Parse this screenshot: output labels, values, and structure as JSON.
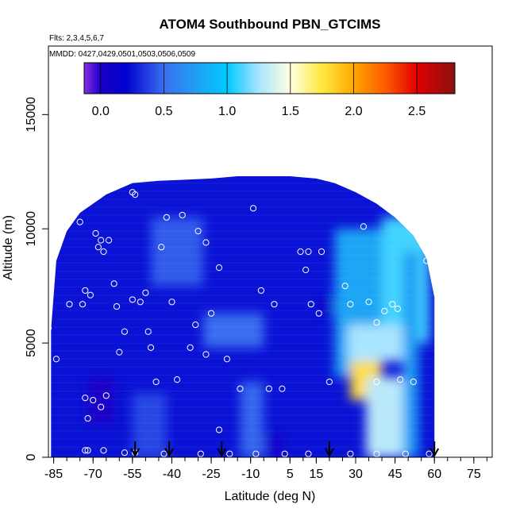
{
  "chart_data": {
    "type": "heatmap",
    "title": "ATOM4 Southbound PBN_GTCIMS",
    "flights_note": "Flts: 2,3,4,5,6,7",
    "dates_note": "MMDD: 0427,0429,0501,0503,0506,0509",
    "xlabel": "Latitude (deg N)",
    "ylabel": "Altitude (m)",
    "xlim": [
      -87,
      82
    ],
    "ylim": [
      0,
      18000
    ],
    "x_ticks": [
      -85,
      -70,
      -55,
      -40,
      -25,
      -10,
      5,
      15,
      30,
      45,
      60,
      75
    ],
    "x_minor_step": 5,
    "y_ticks": [
      0,
      5000,
      10000,
      15000
    ],
    "colorbar": {
      "range": [
        -0.13,
        2.8
      ],
      "ticks": [
        0.0,
        0.5,
        1.0,
        1.5,
        2.0,
        2.5
      ],
      "tick_labels": [
        "0.0",
        "0.5",
        "1.0",
        "1.5",
        "2.0",
        "2.5"
      ],
      "colors": [
        [
          -0.13,
          "#8a2be2"
        ],
        [
          0.0,
          "#1a00c8"
        ],
        [
          0.2,
          "#0000d0"
        ],
        [
          0.5,
          "#3a6ef0"
        ],
        [
          0.8,
          "#1aa8f5"
        ],
        [
          1.0,
          "#00c8ff"
        ],
        [
          1.25,
          "#a8e4ff"
        ],
        [
          1.5,
          "#ffffe0"
        ],
        [
          1.75,
          "#ffe840"
        ],
        [
          2.0,
          "#ffa800"
        ],
        [
          2.25,
          "#ff5a00"
        ],
        [
          2.5,
          "#e00000"
        ],
        [
          2.8,
          "#8a1010"
        ]
      ]
    },
    "envelope": [
      [
        -86,
        5600
      ],
      [
        -84,
        8600
      ],
      [
        -80,
        9900
      ],
      [
        -75,
        10700
      ],
      [
        -65,
        11500
      ],
      [
        -55,
        12000
      ],
      [
        -45,
        12100
      ],
      [
        -35,
        12150
      ],
      [
        -25,
        12200
      ],
      [
        -15,
        12300
      ],
      [
        -5,
        12300
      ],
      [
        5,
        12300
      ],
      [
        15,
        12200
      ],
      [
        22,
        12000
      ],
      [
        30,
        11600
      ],
      [
        38,
        11100
      ],
      [
        45,
        10500
      ],
      [
        52,
        9700
      ],
      [
        57,
        8700
      ],
      [
        60,
        7000
      ]
    ],
    "field_features": [
      {
        "lat": [
          -48,
          -28
        ],
        "alt": [
          7500,
          10500
        ],
        "value": 0.45
      },
      {
        "lat": [
          -28,
          -5
        ],
        "alt": [
          4800,
          6300
        ],
        "value": 0.5
      },
      {
        "lat": [
          -55,
          -42
        ],
        "alt": [
          0,
          2800
        ],
        "value": 0.4
      },
      {
        "lat": [
          -14,
          -5
        ],
        "alt": [
          0,
          3300
        ],
        "value": 0.48
      },
      {
        "lat": [
          22,
          40
        ],
        "alt": [
          3500,
          10000
        ],
        "value": 0.78
      },
      {
        "lat": [
          40,
          58
        ],
        "alt": [
          5000,
          10500
        ],
        "value": 1.1
      },
      {
        "lat": [
          27,
          48
        ],
        "alt": [
          4200,
          5800
        ],
        "value": 1.25
      },
      {
        "lat": [
          28,
          40
        ],
        "alt": [
          2500,
          4200
        ],
        "value": 1.8
      },
      {
        "lat": [
          34,
          48
        ],
        "alt": [
          0,
          3500
        ],
        "value": 1.3
      },
      {
        "lat": [
          48,
          54
        ],
        "alt": [
          0,
          9000
        ],
        "value": 0.75
      },
      {
        "lat": [
          -72,
          -62
        ],
        "alt": [
          1500,
          3500
        ],
        "value": 0.0
      },
      {
        "lat": [
          16,
          22
        ],
        "alt": [
          6300,
          7000
        ],
        "value": 0.08
      },
      {
        "lat": [
          -5,
          2
        ],
        "alt": [
          0,
          1000
        ],
        "value": 0.05
      }
    ],
    "sample_points": [
      [
        -87,
        5650
      ],
      [
        -84,
        4300
      ],
      [
        -79,
        6700
      ],
      [
        -83,
        9500
      ],
      [
        -75,
        10300
      ],
      [
        -74,
        6700
      ],
      [
        -73,
        7300
      ],
      [
        -71,
        7100
      ],
      [
        -69,
        9800
      ],
      [
        -68,
        9200
      ],
      [
        -67,
        9500
      ],
      [
        -66,
        9000
      ],
      [
        -64,
        9500
      ],
      [
        -62,
        7600
      ],
      [
        -61,
        6600
      ],
      [
        -60,
        4600
      ],
      [
        -58,
        5500
      ],
      [
        -55,
        6900
      ],
      [
        -52,
        6800
      ],
      [
        -50,
        7200
      ],
      [
        -49,
        5500
      ],
      [
        -48,
        4800
      ],
      [
        -46,
        3300
      ],
      [
        -44,
        9200
      ],
      [
        -42,
        10500
      ],
      [
        -40,
        6800
      ],
      [
        -38,
        3400
      ],
      [
        -36,
        10600
      ],
      [
        -33,
        4800
      ],
      [
        -31,
        5800
      ],
      [
        -30,
        9900
      ],
      [
        -27,
        9400
      ],
      [
        -27,
        4500
      ],
      [
        -25,
        6300
      ],
      [
        -22,
        8300
      ],
      [
        -22,
        1200
      ],
      [
        -19,
        4300
      ],
      [
        -14,
        3000
      ],
      [
        -9,
        10900
      ],
      [
        -6,
        7300
      ],
      [
        -3,
        3000
      ],
      [
        -1,
        6700
      ],
      [
        2,
        3000
      ],
      [
        9,
        9000
      ],
      [
        11,
        8200
      ],
      [
        12,
        9000
      ],
      [
        13,
        6700
      ],
      [
        16,
        6300
      ],
      [
        17,
        9000
      ],
      [
        20,
        3300
      ],
      [
        26,
        7500
      ],
      [
        28,
        6700
      ],
      [
        33,
        10100
      ],
      [
        35,
        6800
      ],
      [
        38,
        3300
      ],
      [
        38,
        5900
      ],
      [
        41,
        6400
      ],
      [
        44,
        6700
      ],
      [
        46,
        6500
      ],
      [
        47,
        3400
      ],
      [
        52,
        3300
      ],
      [
        57,
        8600
      ],
      [
        -54,
        11500
      ],
      [
        -55,
        11600
      ],
      [
        -73,
        2600
      ],
      [
        -72,
        1700
      ],
      [
        -70,
        2500
      ],
      [
        -67,
        2200
      ],
      [
        -65,
        2700
      ],
      [
        -72,
        300
      ],
      [
        -73,
        300
      ],
      [
        -66,
        300
      ],
      [
        -58,
        200
      ],
      [
        -54,
        200
      ],
      [
        -43,
        150
      ],
      [
        -29,
        150
      ],
      [
        -18,
        150
      ],
      [
        -8,
        150
      ],
      [
        3,
        150
      ],
      [
        12,
        150
      ],
      [
        28,
        150
      ],
      [
        38,
        150
      ],
      [
        49,
        150
      ],
      [
        58,
        150
      ]
    ],
    "arrows": [
      -54,
      -41,
      -21,
      20,
      60
    ]
  }
}
